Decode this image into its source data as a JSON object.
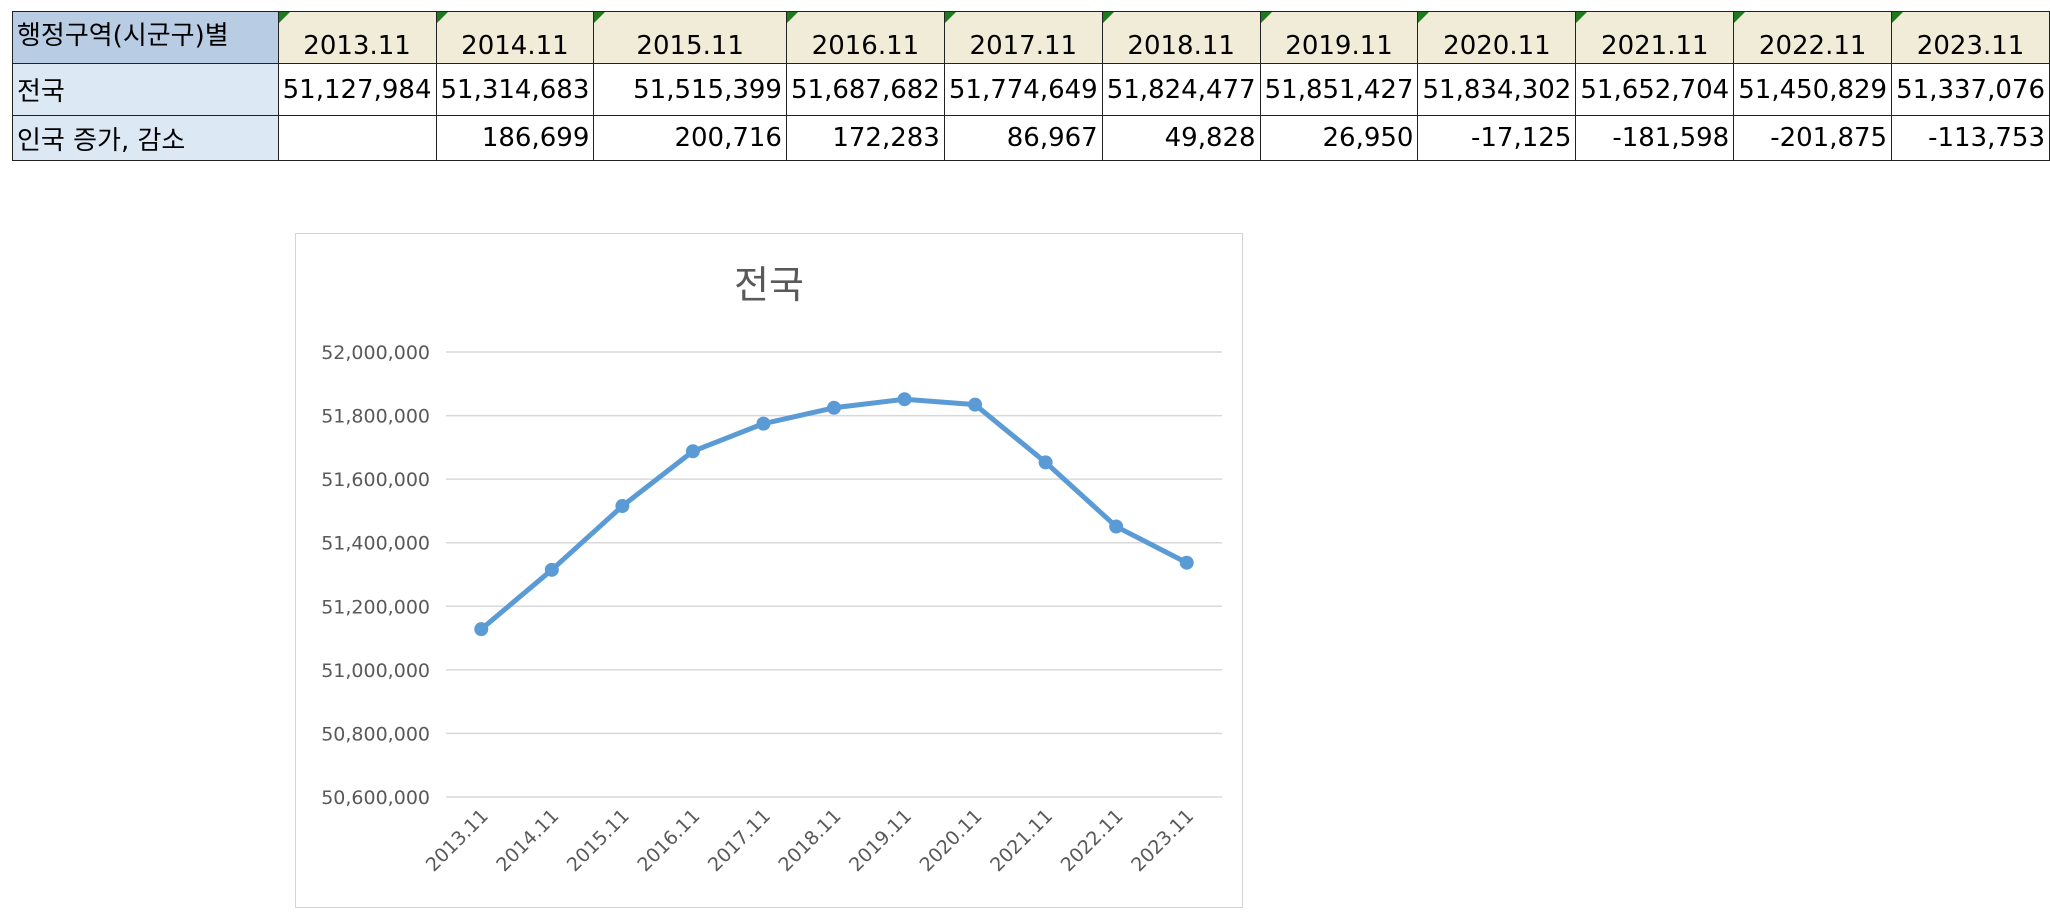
{
  "table": {
    "corner_label": "행정구역(시군구)별",
    "columns": [
      "2013.11",
      "2014.11",
      "2015.11",
      "2016.11",
      "2017.11",
      "2018.11",
      "2019.11",
      "2020.11",
      "2021.11",
      "2022.11",
      "2023.11"
    ],
    "rows": [
      {
        "label": "전국",
        "values": [
          "51,127,984",
          "51,314,683",
          "51,515,399",
          "51,687,682",
          "51,774,649",
          "51,824,477",
          "51,851,427",
          "51,834,302",
          "51,652,704",
          "51,450,829",
          "51,337,076"
        ]
      },
      {
        "label": "인국 증가, 감소",
        "values": [
          "",
          "186,699",
          "200,716",
          "172,283",
          "86,967",
          "49,828",
          "26,950",
          "-17,125",
          "-181,598",
          "-201,875",
          "-113,753"
        ]
      }
    ]
  },
  "chart_data": {
    "type": "line",
    "title": "전국",
    "categories": [
      "2013.11",
      "2014.11",
      "2015.11",
      "2016.11",
      "2017.11",
      "2018.11",
      "2019.11",
      "2020.11",
      "2021.11",
      "2022.11",
      "2023.11"
    ],
    "series": [
      {
        "values": [
          51127984,
          51314683,
          51515399,
          51687682,
          51774649,
          51824477,
          51851427,
          51834302,
          51652704,
          51450829,
          51337076
        ]
      }
    ],
    "ylim": [
      50600000,
      52000000
    ],
    "yticks": [
      50600000,
      50800000,
      51000000,
      51200000,
      51400000,
      51600000,
      51800000,
      52000000
    ],
    "ytick_labels": [
      "50,600,000",
      "50,800,000",
      "51,000,000",
      "51,200,000",
      "51,400,000",
      "51,600,000",
      "51,800,000",
      "52,000,000"
    ],
    "grid": true,
    "legend": "none",
    "line_color": "#5b9bd5",
    "grid_color": "#d9d9d9",
    "label_color": "#595959"
  }
}
